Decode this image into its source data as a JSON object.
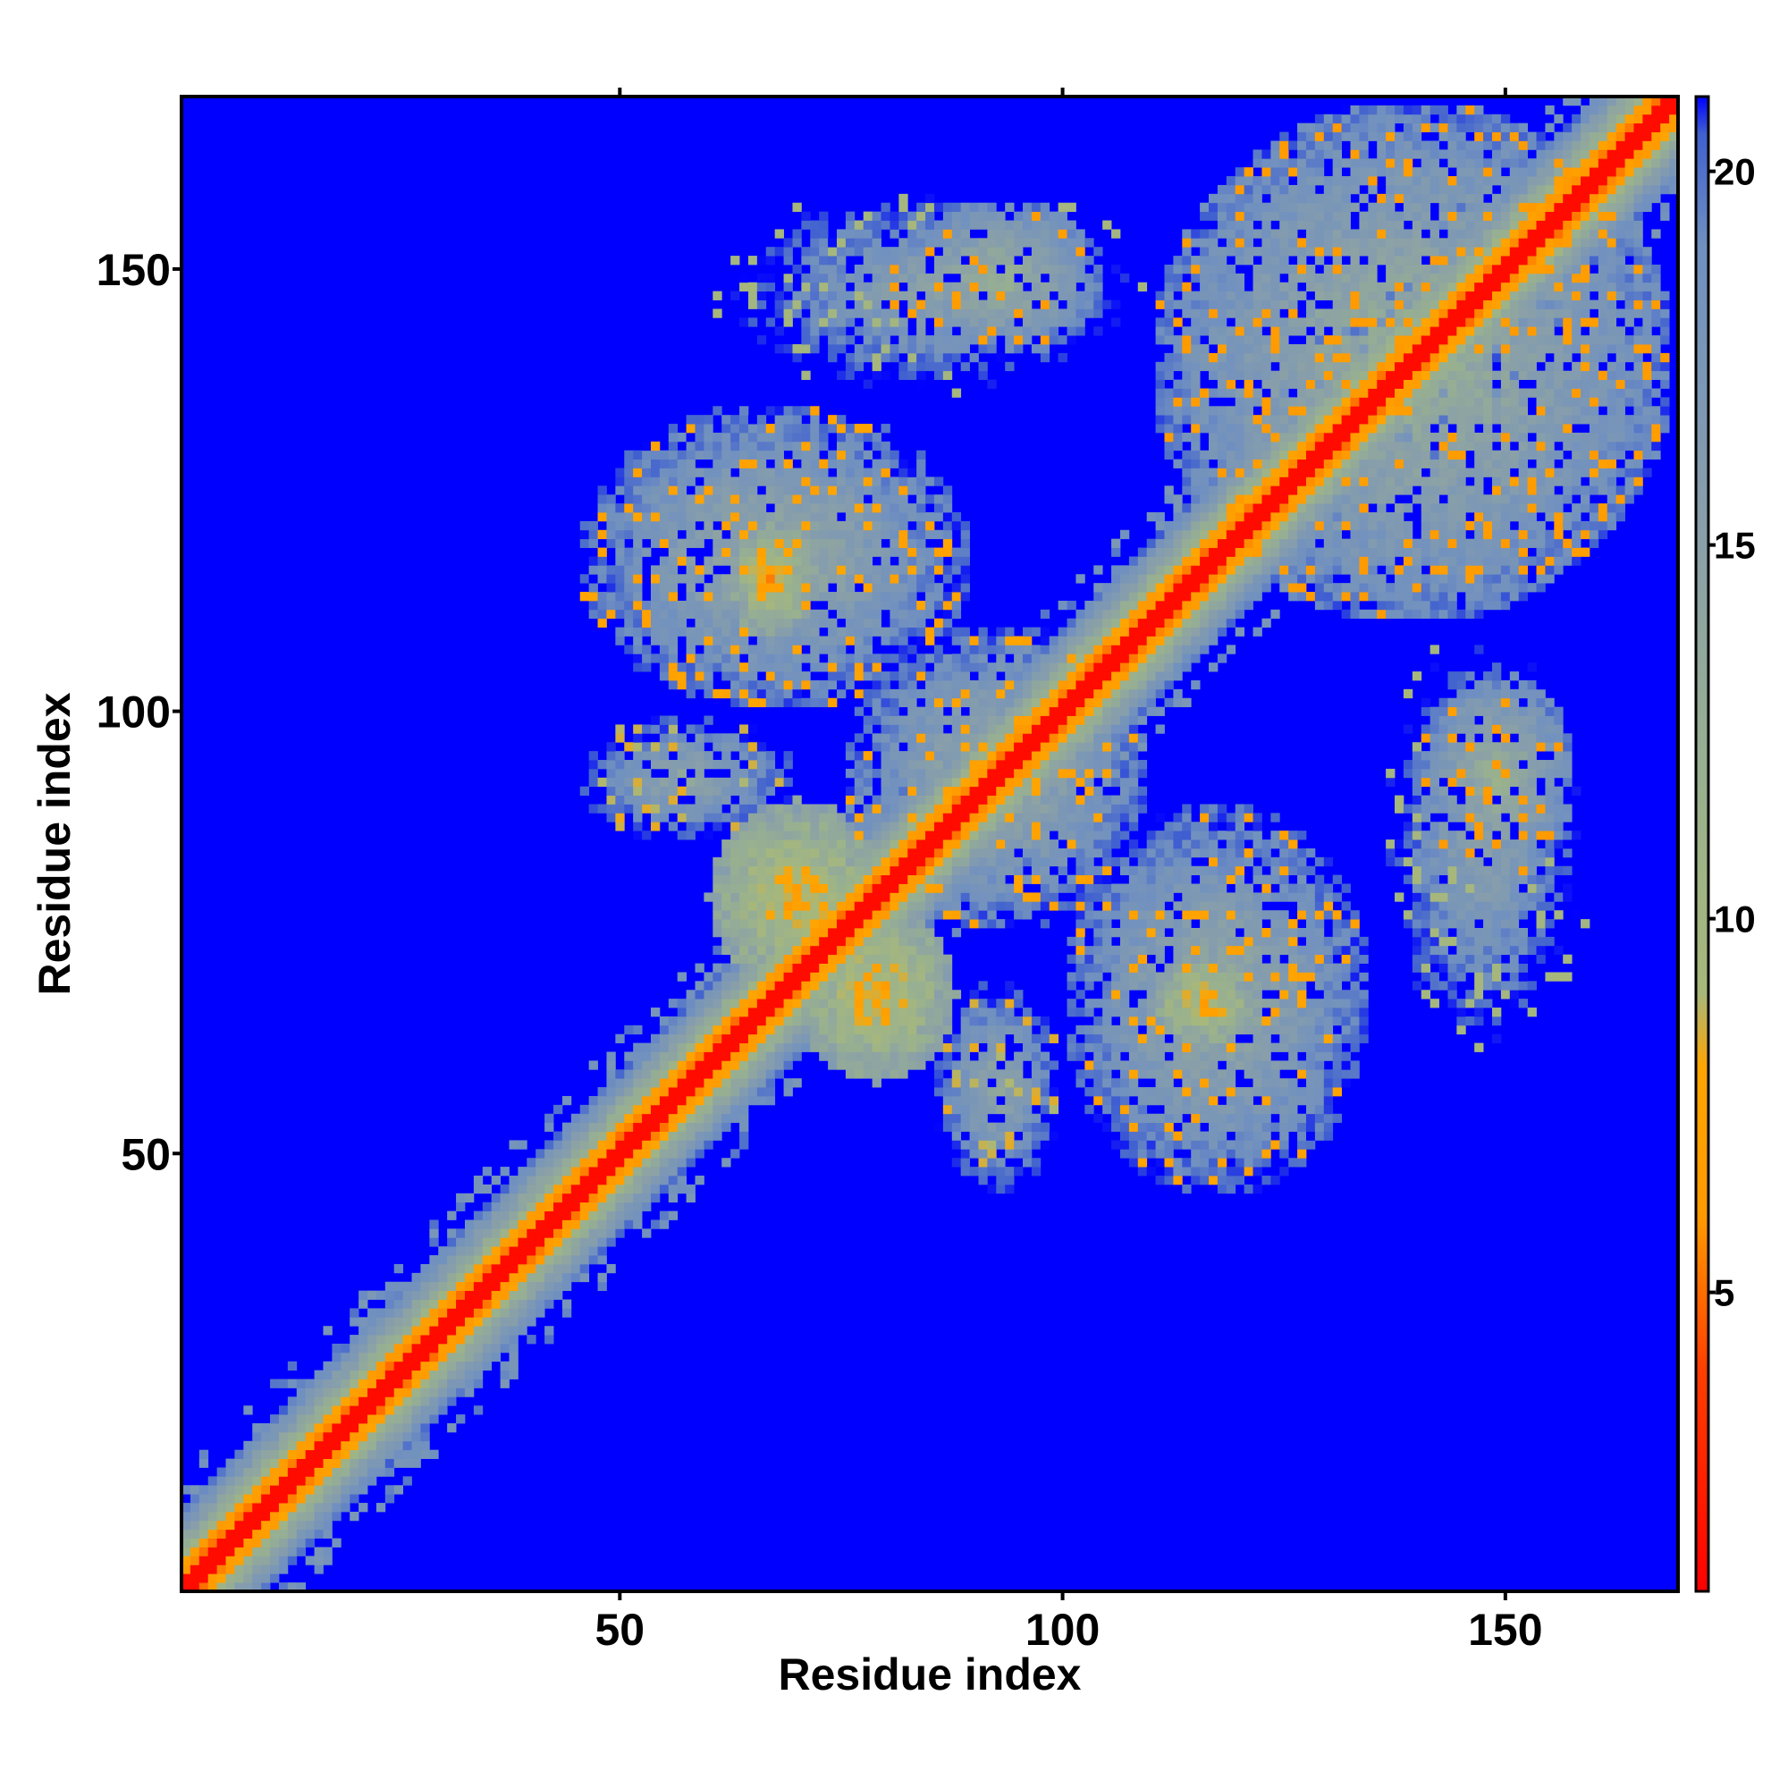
{
  "chart_data": {
    "type": "heatmap",
    "title": "",
    "xlabel": "Residue index",
    "ylabel": "Residue index",
    "xlim": [
      1,
      169
    ],
    "ylim": [
      1,
      169
    ],
    "xticks": [
      50,
      100,
      150
    ],
    "yticks": [
      50,
      100,
      150
    ],
    "colorbar": {
      "range": [
        1,
        21
      ],
      "ticks": [
        5,
        10,
        15,
        20
      ],
      "stops": [
        {
          "value": 1,
          "color": "#ff0000"
        },
        {
          "value": 4,
          "color": "#ff4000"
        },
        {
          "value": 6,
          "color": "#ff9900"
        },
        {
          "value": 8,
          "color": "#ffa500"
        },
        {
          "value": 9,
          "color": "#a8b87a"
        },
        {
          "value": 12,
          "color": "#98b090"
        },
        {
          "value": 15,
          "color": "#8aa0a8"
        },
        {
          "value": 19,
          "color": "#7090c0"
        },
        {
          "value": 20.5,
          "color": "#4060d0"
        },
        {
          "value": 21,
          "color": "#0000ff"
        }
      ]
    },
    "background_value": 21,
    "background_color": "#0000ff",
    "matrix_description": "symmetric residue distance map; values near 1 on diagonal, cutoff 21 shown as blue",
    "contact_regions": [
      {
        "x": [
          1,
          169
        ],
        "y": [
          1,
          169
        ],
        "kind": "diagonal-band",
        "core": 1.5,
        "mid": 6,
        "outer": 12,
        "halfwidth": 9
      },
      {
        "x": [
          60,
          80
        ],
        "y": [
          68,
          90
        ],
        "kind": "cross-strand",
        "min": 5
      },
      {
        "x": [
          70,
          88
        ],
        "y": [
          58,
          78
        ],
        "kind": "cross-strand",
        "min": 5
      },
      {
        "x": [
          62,
          72
        ],
        "y": [
          108,
          122
        ],
        "kind": "cross-strand",
        "min": 5
      },
      {
        "x": [
          110,
          122
        ],
        "y": [
          62,
          72
        ],
        "kind": "cross-strand",
        "min": 5
      },
      {
        "x": [
          45,
          90
        ],
        "y": [
          100,
          135
        ],
        "kind": "patch",
        "min": 8
      },
      {
        "x": [
          100,
          135
        ],
        "y": [
          45,
          90
        ],
        "kind": "patch",
        "min": 8
      },
      {
        "x": [
          75,
          110
        ],
        "y": [
          75,
          110
        ],
        "kind": "patch",
        "min": 8
      },
      {
        "x": [
          80,
          105
        ],
        "y": [
          140,
          158
        ],
        "kind": "patch",
        "min": 7
      },
      {
        "x": [
          140,
          158
        ],
        "y": [
          80,
          105
        ],
        "kind": "patch",
        "min": 7
      },
      {
        "x": [
          110,
          169
        ],
        "y": [
          110,
          169
        ],
        "kind": "patch",
        "min": 7
      },
      {
        "x": [
          60,
          110
        ],
        "y": [
          135,
          160
        ],
        "kind": "patch",
        "min": 10
      },
      {
        "x": [
          135,
          160
        ],
        "y": [
          60,
          110
        ],
        "kind": "patch",
        "min": 10
      },
      {
        "x": [
          45,
          70
        ],
        "y": [
          85,
          100
        ],
        "kind": "patch",
        "min": 9
      },
      {
        "x": [
          85,
          100
        ],
        "y": [
          45,
          70
        ],
        "kind": "patch",
        "min": 9
      }
    ]
  }
}
